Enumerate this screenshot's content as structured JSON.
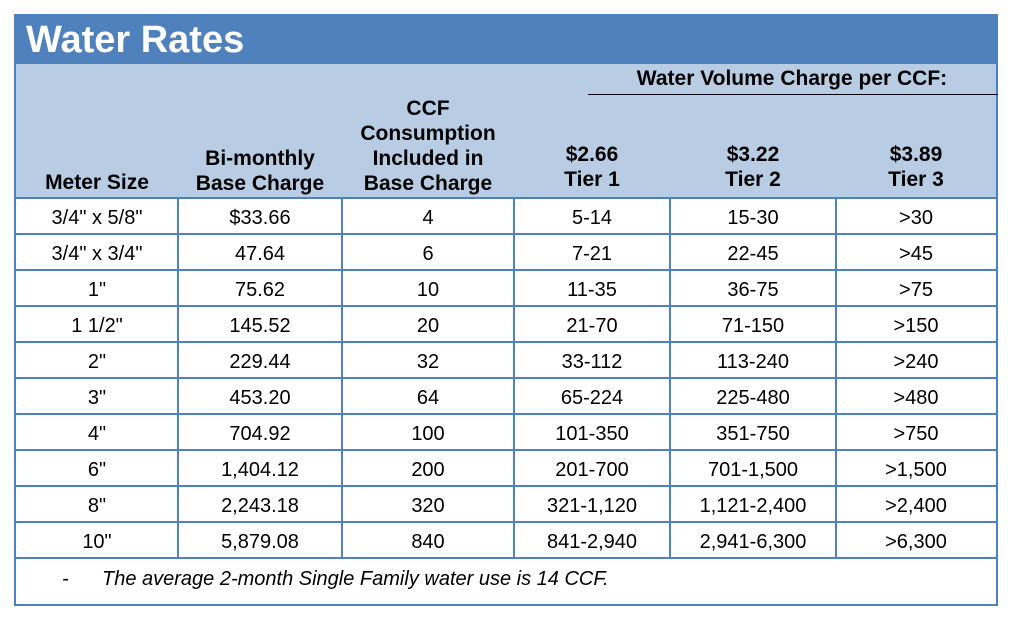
{
  "title": "Water Rates",
  "header": {
    "group_label": "Water Volume Charge per CCF:",
    "meter_size": "Meter Size",
    "base_charge": [
      "Bi-monthly",
      "Base Charge"
    ],
    "ccf_included": [
      "CCF",
      "Consumption",
      "Included in",
      "Base Charge"
    ],
    "tier1": [
      "$2.66",
      "Tier 1"
    ],
    "tier2": [
      "$3.22",
      "Tier 2"
    ],
    "tier3": [
      "$3.89",
      "Tier 3"
    ]
  },
  "rows": [
    {
      "meter": "3/4\" x 5/8\"",
      "base": "$33.66",
      "ccf": "4",
      "tier1": "5-14",
      "tier2": "15-30",
      "tier3": ">30"
    },
    {
      "meter": "3/4\" x 3/4\"",
      "base": "47.64",
      "ccf": "6",
      "tier1": "7-21",
      "tier2": "22-45",
      "tier3": ">45"
    },
    {
      "meter": "1\"",
      "base": "75.62",
      "ccf": "10",
      "tier1": "11-35",
      "tier2": "36-75",
      "tier3": ">75"
    },
    {
      "meter": "1 1/2\"",
      "base": "145.52",
      "ccf": "20",
      "tier1": "21-70",
      "tier2": "71-150",
      "tier3": ">150"
    },
    {
      "meter": "2\"",
      "base": "229.44",
      "ccf": "32",
      "tier1": "33-112",
      "tier2": "113-240",
      "tier3": ">240"
    },
    {
      "meter": "3\"",
      "base": "453.20",
      "ccf": "64",
      "tier1": "65-224",
      "tier2": "225-480",
      "tier3": ">480"
    },
    {
      "meter": "4\"",
      "base": "704.92",
      "ccf": "100",
      "tier1": "101-350",
      "tier2": "351-750",
      "tier3": ">750"
    },
    {
      "meter": "6\"",
      "base": "1,404.12",
      "ccf": "200",
      "tier1": "201-700",
      "tier2": "701-1,500",
      "tier3": ">1,500"
    },
    {
      "meter": "8\"",
      "base": "2,243.18",
      "ccf": "320",
      "tier1": "321-1,120",
      "tier2": "1,121-2,400",
      "tier3": ">2,400"
    },
    {
      "meter": "10\"",
      "base": "5,879.08",
      "ccf": "840",
      "tier1": "841-2,940",
      "tier2": "2,941-6,300",
      "tier3": ">6,300"
    }
  ],
  "note": {
    "bullet": "-",
    "text": "The average 2-month Single Family water use is 14 CCF."
  },
  "colors": {
    "title_bar": "#4f81bd",
    "header_bg": "#b8cce4",
    "grid": "#4f81bd"
  }
}
